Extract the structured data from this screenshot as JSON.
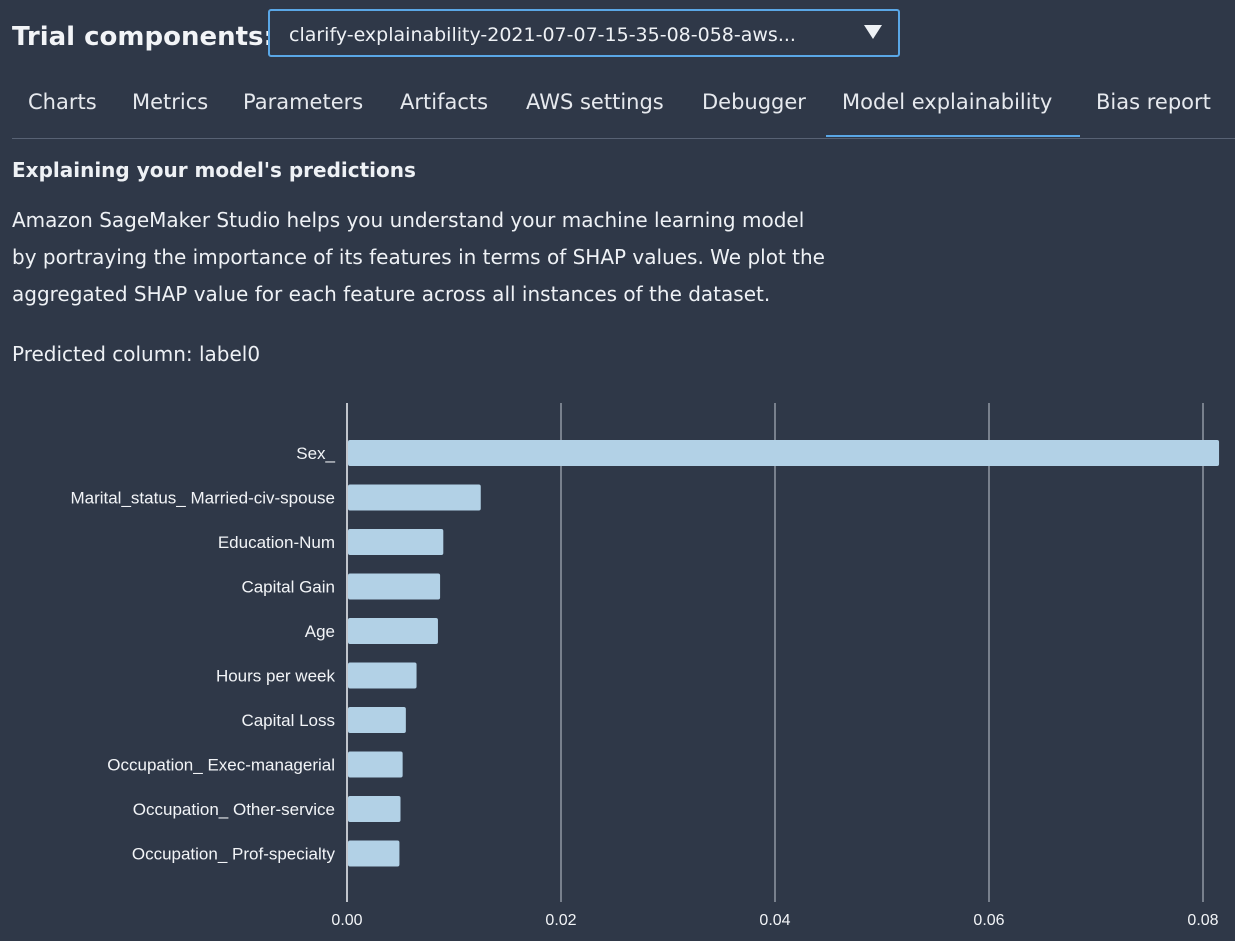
{
  "trial": {
    "label": "Trial components:",
    "selected_value": "clarify-explainability-2021-07-07-15-35-08-058-aws..."
  },
  "tabs": [
    {
      "label": "Charts"
    },
    {
      "label": "Metrics"
    },
    {
      "label": "Parameters"
    },
    {
      "label": "Artifacts"
    },
    {
      "label": "AWS settings"
    },
    {
      "label": "Debugger"
    },
    {
      "label": "Model explainability",
      "active": true
    },
    {
      "label": "Bias report"
    }
  ],
  "content": {
    "heading": "Explaining your model's predictions",
    "description_lines": [
      "Amazon SageMaker Studio helps you understand your machine learning model",
      "by portraying the importance of its features in terms of SHAP values. We plot the",
      "aggregated SHAP value for each feature across all instances of the dataset."
    ],
    "predicted_column": "Predicted column: label0"
  },
  "chart_data": {
    "type": "bar",
    "orientation": "horizontal",
    "categories": [
      "Sex_",
      "Marital_status_ Married-civ-spouse",
      "Education-Num",
      "Capital Gain",
      "Age",
      "Hours per week",
      "Capital Loss",
      "Occupation_ Exec-managerial",
      "Occupation_ Other-service",
      "Occupation_ Prof-specialty"
    ],
    "values": [
      0.0815,
      0.0125,
      0.009,
      0.0087,
      0.0085,
      0.0065,
      0.0055,
      0.0052,
      0.005,
      0.0049
    ],
    "xlim": [
      0,
      0.082
    ],
    "xticks": [
      0.0,
      0.02,
      0.04,
      0.06,
      0.08
    ],
    "xtick_labels": [
      "0.00",
      "0.02",
      "0.04",
      "0.06",
      "0.08"
    ],
    "grid": true,
    "bar_color": "#b2d1e6",
    "grid_color": "#a9b0bb"
  }
}
